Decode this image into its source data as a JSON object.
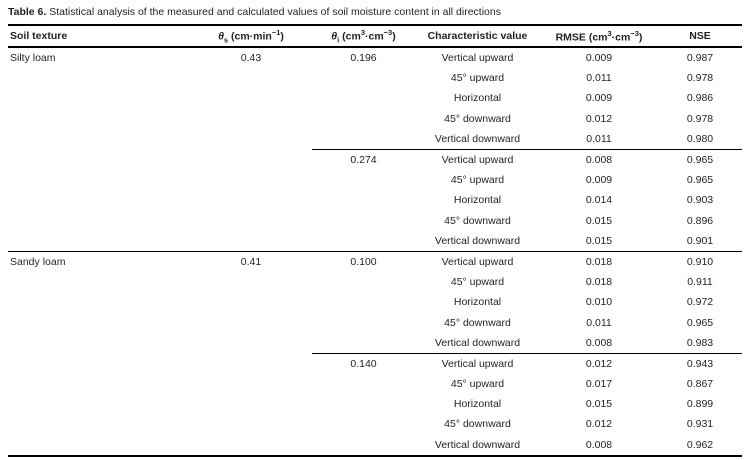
{
  "title": {
    "label": "Table 6.",
    "text": " Statistical analysis of the measured and calculated values of soil moisture content in all directions"
  },
  "table": {
    "headers": {
      "soil": "Soil texture",
      "theta_s_html": "<i>θ</i><sub>s</sub> (cm·min<sup>−1</sup>)",
      "theta_i_html": "<i>θ</i><sub>i</sub> (cm<sup>3</sup>·cm<sup>−3</sup>)",
      "direction": "Characteristic value",
      "rmse_html": "RMSE (cm<sup>3</sup>·cm<sup>−3</sup>)",
      "nse": "NSE"
    },
    "rows": [
      {
        "soil": "Silty loam",
        "theta_s": "0.43",
        "theta_i": "0.196",
        "direction": "Vertical upward",
        "rmse": "0.009",
        "nse": "0.987"
      },
      {
        "soil": "",
        "theta_s": "",
        "theta_i": "",
        "direction": "45° upward",
        "rmse": "0.011",
        "nse": "0.978"
      },
      {
        "soil": "",
        "theta_s": "",
        "theta_i": "",
        "direction": "Horizontal",
        "rmse": "0.009",
        "nse": "0.986"
      },
      {
        "soil": "",
        "theta_s": "",
        "theta_i": "",
        "direction": "45° downward",
        "rmse": "0.012",
        "nse": "0.978"
      },
      {
        "soil": "",
        "theta_s": "",
        "theta_i": "",
        "direction": "Vertical downward",
        "rmse": "0.011",
        "nse": "0.980"
      },
      {
        "soil": "",
        "theta_s": "",
        "theta_i": "0.274",
        "direction": "Vertical upward",
        "rmse": "0.008",
        "nse": "0.965"
      },
      {
        "soil": "",
        "theta_s": "",
        "theta_i": "",
        "direction": "45° upward",
        "rmse": "0.009",
        "nse": "0.965"
      },
      {
        "soil": "",
        "theta_s": "",
        "theta_i": "",
        "direction": "Horizontal",
        "rmse": "0.014",
        "nse": "0.903"
      },
      {
        "soil": "",
        "theta_s": "",
        "theta_i": "",
        "direction": "45° downward",
        "rmse": "0.015",
        "nse": "0.896"
      },
      {
        "soil": "",
        "theta_s": "",
        "theta_i": "",
        "direction": "Vertical downward",
        "rmse": "0.015",
        "nse": "0.901"
      },
      {
        "soil": "Sandy loam",
        "theta_s": "0.41",
        "theta_i": "0.100",
        "direction": "Vertical upward",
        "rmse": "0.018",
        "nse": "0.910"
      },
      {
        "soil": "",
        "theta_s": "",
        "theta_i": "",
        "direction": "45° upward",
        "rmse": "0.018",
        "nse": "0.911"
      },
      {
        "soil": "",
        "theta_s": "",
        "theta_i": "",
        "direction": "Horizontal",
        "rmse": "0.010",
        "nse": "0.972"
      },
      {
        "soil": "",
        "theta_s": "",
        "theta_i": "",
        "direction": "45° downward",
        "rmse": "0.011",
        "nse": "0.965"
      },
      {
        "soil": "",
        "theta_s": "",
        "theta_i": "",
        "direction": "Vertical downward",
        "rmse": "0.008",
        "nse": "0.983"
      },
      {
        "soil": "",
        "theta_s": "",
        "theta_i": "0.140",
        "direction": "Vertical upward",
        "rmse": "0.012",
        "nse": "0.943"
      },
      {
        "soil": "",
        "theta_s": "",
        "theta_i": "",
        "direction": "45° upward",
        "rmse": "0.017",
        "nse": "0.867"
      },
      {
        "soil": "",
        "theta_s": "",
        "theta_i": "",
        "direction": "Horizontal",
        "rmse": "0.015",
        "nse": "0.899"
      },
      {
        "soil": "",
        "theta_s": "",
        "theta_i": "",
        "direction": "45° downward",
        "rmse": "0.012",
        "nse": "0.931"
      },
      {
        "soil": "",
        "theta_s": "",
        "theta_i": "",
        "direction": "Vertical downward",
        "rmse": "0.008",
        "nse": "0.962"
      }
    ]
  }
}
